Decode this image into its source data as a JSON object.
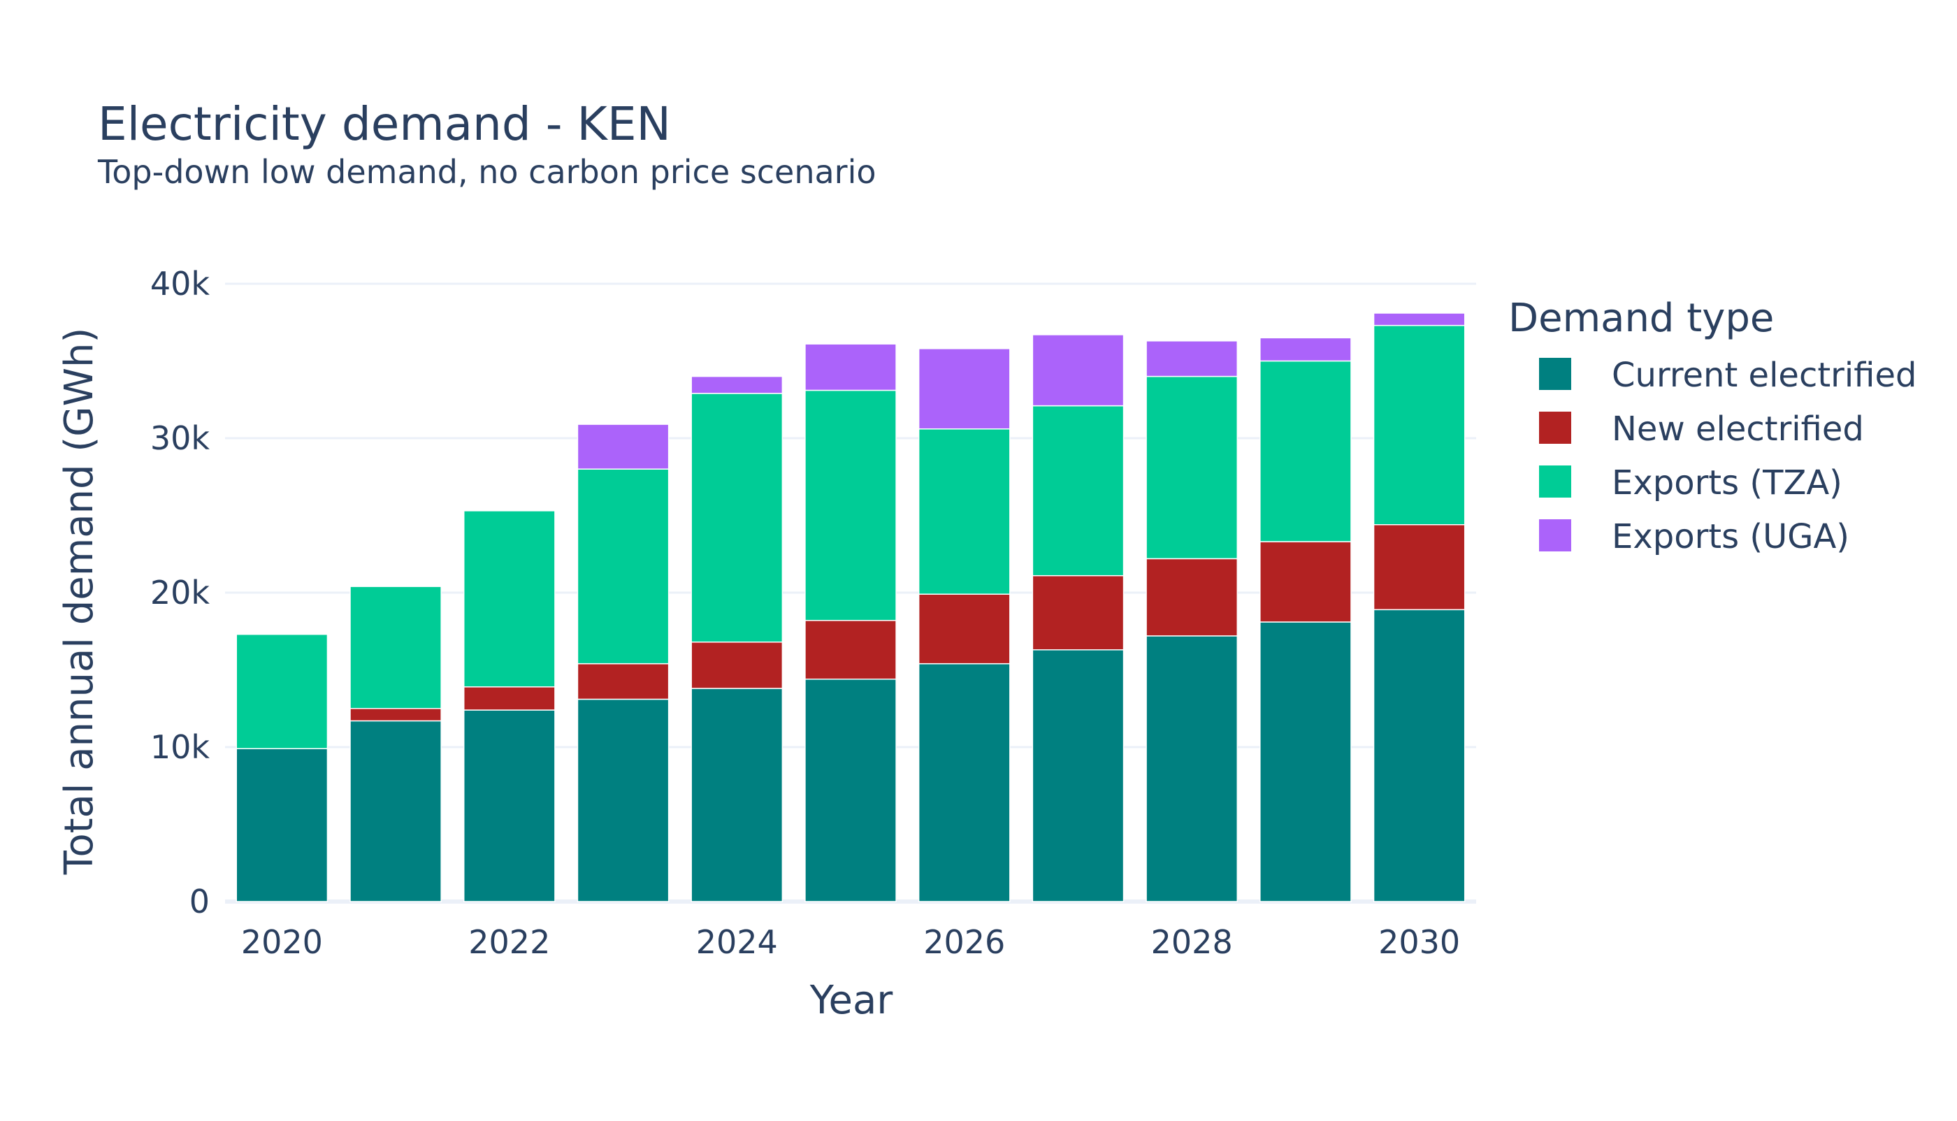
{
  "chart_data": {
    "type": "bar",
    "barmode": "stack",
    "title": "Electricity demand - KEN",
    "subtitle": "Top-down low demand, no carbon price scenario",
    "xlabel": "Year",
    "ylabel": "Total annual demand (GWh)",
    "x": [
      2020,
      2021,
      2022,
      2023,
      2024,
      2025,
      2026,
      2027,
      2028,
      2029,
      2030
    ],
    "x_tick_labels": [
      "2020",
      "2022",
      "2024",
      "2026",
      "2028",
      "2030"
    ],
    "x_tick_values": [
      2020,
      2022,
      2024,
      2026,
      2028,
      2030
    ],
    "ylim": [
      0,
      40000
    ],
    "y_tick_values": [
      0,
      10000,
      20000,
      30000,
      40000
    ],
    "y_tick_labels": [
      "0",
      "10k",
      "20k",
      "30k",
      "40k"
    ],
    "grid": true,
    "legend": {
      "title": "Demand type",
      "position": "right"
    },
    "series": [
      {
        "name": "Current electrified",
        "color": "#008080",
        "values": [
          9900,
          11700,
          12400,
          13100,
          13800,
          14400,
          15400,
          16300,
          17200,
          18100,
          18900
        ]
      },
      {
        "name": "New electrified",
        "color": "#b22222",
        "values": [
          0,
          800,
          1500,
          2300,
          3000,
          3800,
          4500,
          4800,
          5000,
          5200,
          5500
        ]
      },
      {
        "name": "Exports (TZA)",
        "color": "#00cc96",
        "values": [
          7400,
          7900,
          11400,
          12600,
          16100,
          14900,
          10700,
          11000,
          11800,
          11700,
          12900
        ]
      },
      {
        "name": "Exports (UGA)",
        "color": "#ab63fa",
        "values": [
          0,
          0,
          0,
          2900,
          1100,
          3000,
          5200,
          4600,
          2300,
          1500,
          800
        ]
      }
    ]
  }
}
